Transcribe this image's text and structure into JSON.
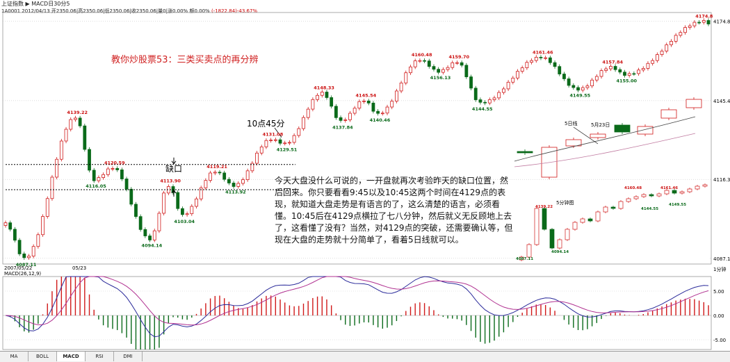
{
  "header": {
    "line1": "上证指数 ▶ MACD日30分5",
    "code": "1A0001",
    "date": "2012/04/13",
    "open": "开2350.06",
    "high": "高2350.06",
    "low": "低2350.06",
    "close": "收2350.06",
    "volume": "量0",
    "change": "涨0.00%",
    "amount": "额0.00%",
    "extra": "(-1822.84)-43.67%"
  },
  "title": "教你炒股票53：三类买卖点的再分辨",
  "article": "今天大盘没什么可说的，一开盘就再次考验昨天的缺口位置，然后回来。你只要看看9:45以及10:45这两个时间在4129点的表现，就知道大盘走势是有语言的了，这么清楚的语言，必须看懂。10:45后在4129点横拉了七八分钟，然后就义无反顾地上去了，这看懂了没有？当然，对4129点的突破，还需要确认等，但现在大盘的走势就十分简单了，看着5日线就可以。",
  "annotations": {
    "gap": "缺口",
    "time_label": "10点45分",
    "inset_5day": "5日线",
    "inset_date": "5月23日",
    "inset_5min": "5分钟图",
    "cursor": "1分钟"
  },
  "date_labels": [
    "2007/05/22",
    "05/23"
  ],
  "tabs": [
    "MA",
    "BOLL",
    "MACD",
    "RSI",
    "DMI"
  ],
  "active_tab": "MACD",
  "chart_data": {
    "type": "candlestick",
    "title": "",
    "price_axis": {
      "ticks": [
        4174.8,
        4145.4,
        4116.3,
        4087.1
      ],
      "ylim": [
        4085,
        4178
      ]
    },
    "macd": {
      "label": "MACD(26,12,9)",
      "ticks": [
        "5.00",
        "0.00",
        "-5.00"
      ],
      "ylim": [
        -7,
        8
      ]
    },
    "extremes": [
      {
        "label": "4087.11",
        "i": 4,
        "v": 4087.11,
        "pos": "below"
      },
      {
        "label": "4139.22",
        "i": 15,
        "v": 4139.22,
        "pos": "above"
      },
      {
        "label": "4116.05",
        "i": 19,
        "v": 4116.05,
        "pos": "below"
      },
      {
        "label": "4120.59",
        "i": 23,
        "v": 4120.59,
        "pos": "above"
      },
      {
        "label": "4094.14",
        "i": 31,
        "v": 4094.14,
        "pos": "below"
      },
      {
        "label": "4113.90",
        "i": 35,
        "v": 4113.9,
        "pos": "above"
      },
      {
        "label": "4103.04",
        "i": 38,
        "v": 4103.04,
        "pos": "below"
      },
      {
        "label": "4119.21",
        "i": 45,
        "v": 4119.21,
        "pos": "above"
      },
      {
        "label": "4113.92",
        "i": 49,
        "v": 4113.92,
        "pos": "below"
      },
      {
        "label": "4131.08",
        "i": 57,
        "v": 4131.08,
        "pos": "above"
      },
      {
        "label": "4129.51",
        "i": 60,
        "v": 4129.51,
        "pos": "below"
      },
      {
        "label": "4148.33",
        "i": 68,
        "v": 4148.33,
        "pos": "above"
      },
      {
        "label": "4137.84",
        "i": 72,
        "v": 4137.84,
        "pos": "below"
      },
      {
        "label": "4145.54",
        "i": 77,
        "v": 4145.54,
        "pos": "above"
      },
      {
        "label": "4140.46",
        "i": 80,
        "v": 4140.46,
        "pos": "below"
      },
      {
        "label": "4160.48",
        "i": 89,
        "v": 4160.48,
        "pos": "above"
      },
      {
        "label": "4156.13",
        "i": 93,
        "v": 4156.13,
        "pos": "below"
      },
      {
        "label": "4159.70",
        "i": 97,
        "v": 4159.7,
        "pos": "above"
      },
      {
        "label": "4144.55",
        "i": 102,
        "v": 4144.55,
        "pos": "below"
      },
      {
        "label": "4161.46",
        "i": 115,
        "v": 4161.46,
        "pos": "above"
      },
      {
        "label": "4149.55",
        "i": 123,
        "v": 4149.55,
        "pos": "below"
      },
      {
        "label": "4157.84",
        "i": 130,
        "v": 4157.84,
        "pos": "above"
      },
      {
        "label": "4155.00",
        "i": 133,
        "v": 4155.0,
        "pos": "below"
      },
      {
        "label": "4174.8",
        "i": 150,
        "v": 4174.8,
        "pos": "above"
      }
    ],
    "gap_levels": [
      4121.8,
      4112.5
    ],
    "inset_5min_labels": [
      "4087.11",
      "4139.22",
      "4094.14",
      "4160.48",
      "4144.55",
      "4161.46",
      "4149.55"
    ]
  },
  "colors": {
    "up": "#d01818",
    "down": "#0a6a1a",
    "dif": "#2a2a9a",
    "dea": "#b03090",
    "label": "#cc1010",
    "label_low": "#0a6a1a"
  }
}
